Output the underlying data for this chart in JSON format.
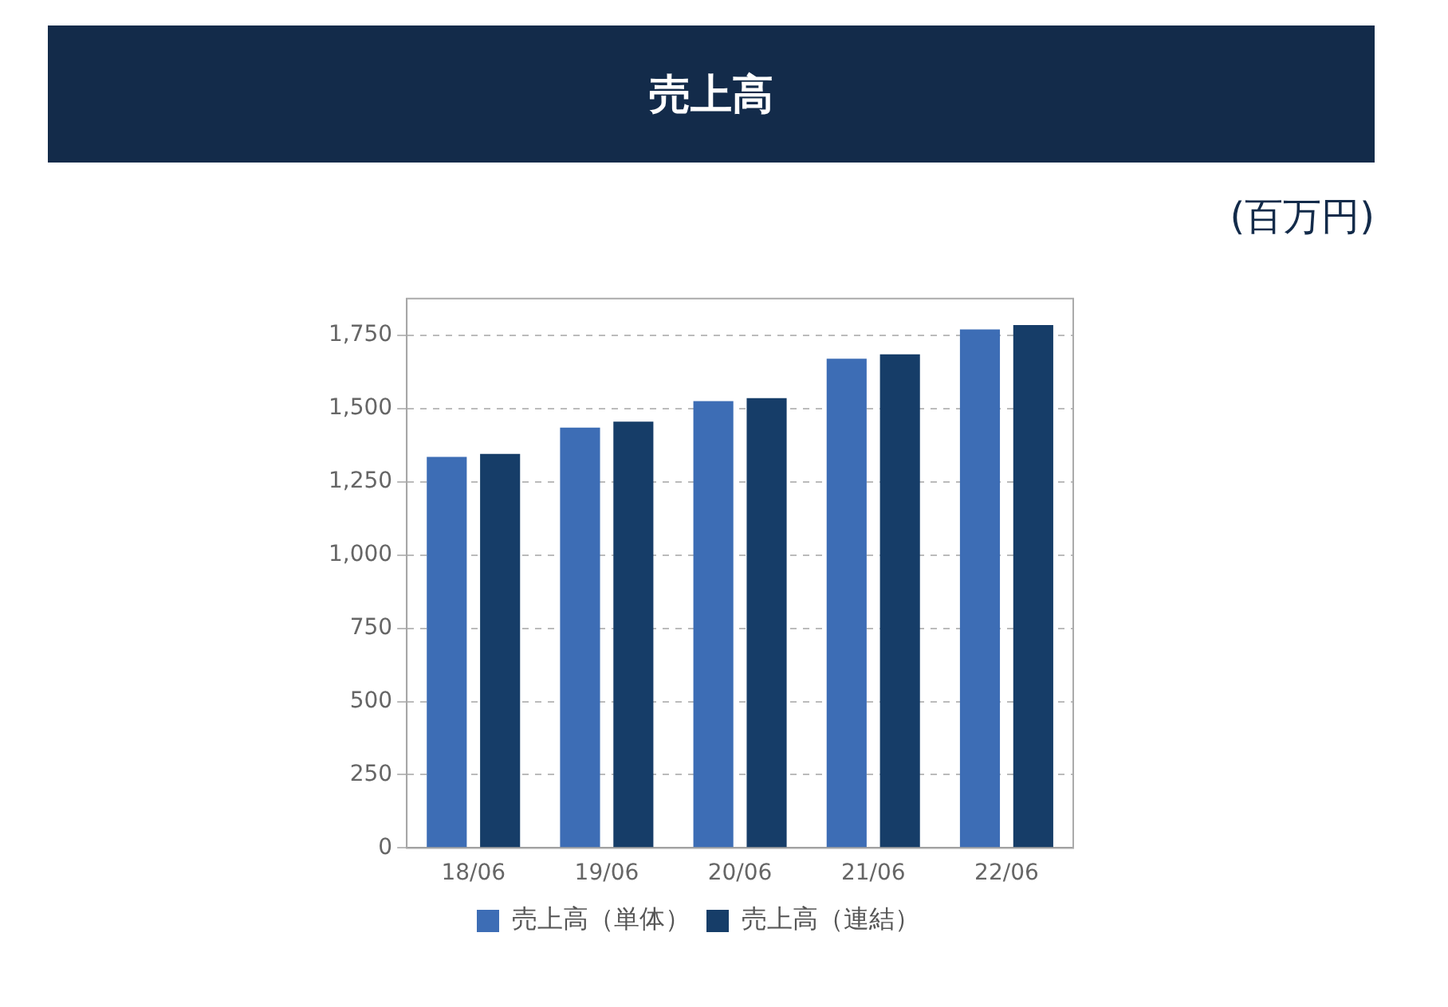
{
  "chart_data": {
    "type": "bar",
    "title": "売上高",
    "annotations": [
      "(百万円)"
    ],
    "categories": [
      "18/06",
      "19/06",
      "20/06",
      "21/06",
      "22/06"
    ],
    "series": [
      {
        "name": "売上高（単体）",
        "color": "#3d6db5",
        "values": [
          1335,
          1435,
          1525,
          1670,
          1770
        ]
      },
      {
        "name": "売上高（連結）",
        "color": "#163d68",
        "values": [
          1345,
          1455,
          1535,
          1685,
          1785
        ]
      }
    ],
    "ylim": [
      0,
      1875
    ],
    "yticks": [
      0,
      250,
      500,
      750,
      {
        "value": 1000,
        "label": "1,000"
      },
      {
        "value": 1250,
        "label": "1,250"
      },
      {
        "value": 1500,
        "label": "1,500"
      },
      {
        "value": 1750,
        "label": "1,750"
      }
    ],
    "grid": "y",
    "legend": "bottom"
  }
}
